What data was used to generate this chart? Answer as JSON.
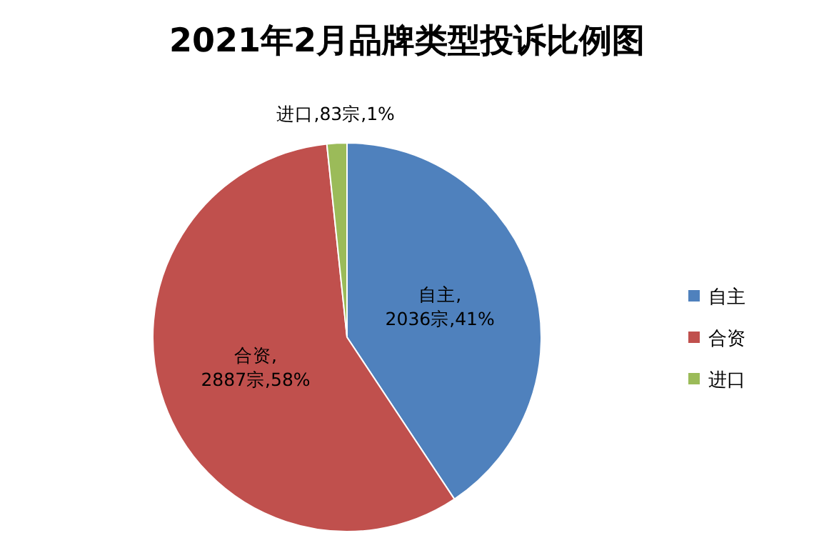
{
  "chart_data": {
    "type": "pie",
    "title": "2021年2月品牌类型投诉比例图",
    "categories": [
      "自主",
      "合资",
      "进口"
    ],
    "values": [
      2036,
      2887,
      83
    ],
    "value_labels": [
      "自主,2036宗,41%",
      "合资,2887宗,58%",
      "进口,83宗,1%"
    ],
    "colors": [
      "#4f81bd",
      "#c0504d",
      "#9bbb59"
    ],
    "legend": "right"
  }
}
